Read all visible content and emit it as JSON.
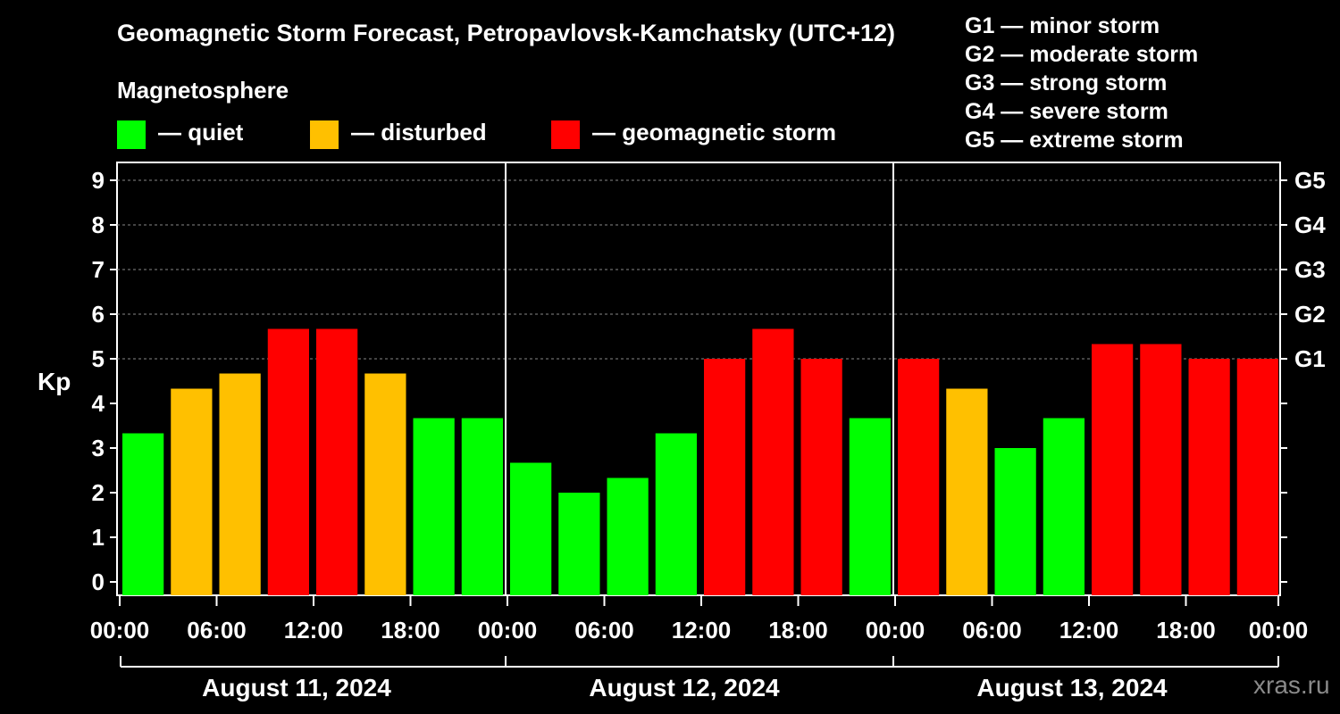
{
  "chart_data": {
    "type": "bar",
    "title": "Geomagnetic Storm Forecast, Petropavlovsk-Kamchatsky (UTC+12)",
    "ylabel": "Kp",
    "ylim": [
      -0.3,
      9.4
    ],
    "yticks": [
      "0",
      "1",
      "2",
      "3",
      "4",
      "5",
      "6",
      "7",
      "8",
      "9"
    ],
    "right_ticks": [
      {
        "kp": 5,
        "label": "G1"
      },
      {
        "kp": 6,
        "label": "G2"
      },
      {
        "kp": 7,
        "label": "G3"
      },
      {
        "kp": 8,
        "label": "G4"
      },
      {
        "kp": 9,
        "label": "G5"
      }
    ],
    "grid": "dashed horizontal at 5-9",
    "xticks": [
      "00:00",
      "06:00",
      "12:00",
      "18:00",
      "00:00",
      "06:00",
      "12:00",
      "18:00",
      "00:00",
      "06:00",
      "12:00",
      "18:00",
      "00:00"
    ],
    "days": [
      "August 11, 2024",
      "August 12, 2024",
      "August 13, 2024"
    ],
    "values": [
      3.33,
      4.33,
      4.67,
      5.67,
      5.67,
      4.67,
      3.67,
      3.67,
      2.67,
      2.0,
      2.33,
      3.33,
      5.0,
      5.67,
      5.0,
      3.67,
      5.0,
      4.33,
      3.0,
      3.67,
      5.33,
      5.33,
      5.0,
      5.0
    ],
    "levels": [
      "quiet",
      "disturbed",
      "disturbed",
      "storm",
      "storm",
      "disturbed",
      "quiet",
      "quiet",
      "quiet",
      "quiet",
      "quiet",
      "quiet",
      "storm",
      "storm",
      "storm",
      "quiet",
      "storm",
      "disturbed",
      "quiet",
      "quiet",
      "storm",
      "storm",
      "storm",
      "storm"
    ],
    "colors": {
      "quiet": "#00ff00",
      "disturbed": "#ffc000",
      "storm": "#ff0000"
    }
  },
  "legend": {
    "title": "Magnetosphere",
    "items": [
      {
        "label": "— quiet",
        "color": "#00ff00"
      },
      {
        "label": "— disturbed",
        "color": "#ffc000"
      },
      {
        "label": "— geomagnetic storm",
        "color": "#ff0000"
      }
    ]
  },
  "g_scale": [
    "G1 — minor storm",
    "G2 — moderate storm",
    "G3 — strong storm",
    "G4 — severe storm",
    "G5 — extreme storm"
  ],
  "watermark": "xras.ru"
}
